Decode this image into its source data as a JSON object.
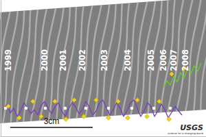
{
  "chart_data": {
    "type": "line",
    "xlim": [
      0,
      7.5
    ],
    "ylim": [
      0,
      10
    ],
    "tick_labels": false,
    "series": [
      {
        "type": "line",
        "color": "#7b3fbf",
        "x": [
          0.125,
          0.25,
          0.375,
          0.5,
          0.625,
          0.75,
          0.875,
          1.0,
          1.125,
          1.25,
          1.375,
          1.5,
          1.625,
          1.75,
          1.875,
          2.0,
          2.125,
          2.25,
          2.375,
          2.5,
          2.625,
          2.75,
          2.875,
          3.0,
          3.125,
          3.25,
          3.375,
          3.5,
          3.625,
          3.75,
          3.875,
          4.0,
          4.125,
          4.25,
          4.375,
          4.5,
          4.625,
          4.75,
          4.875,
          5.0,
          5.125,
          5.25,
          5.375,
          5.5,
          5.625,
          5.75,
          5.875,
          6.0,
          6.125,
          6.25,
          6.375,
          6.5,
          6.625
        ],
        "values": [
          2.0,
          2.4,
          1.75,
          2.1,
          1.5,
          1.9,
          2.5,
          2.1,
          1.7,
          2.0,
          1.6,
          2.3,
          2.6,
          2.1,
          1.7,
          2.2,
          2.5,
          1.9,
          1.5,
          2.1,
          2.5,
          2.2,
          1.7,
          2.0,
          2.6,
          2.2,
          1.6,
          1.9,
          2.5,
          2.7,
          2.1,
          1.6,
          2.0,
          2.5,
          2.1,
          1.5,
          1.9,
          2.5,
          2.7,
          2.1,
          1.5,
          1.9,
          2.5,
          2.2,
          1.5,
          1.9,
          2.4,
          2.0,
          1.4,
          1.8,
          2.25,
          1.9,
          1.6
        ]
      },
      {
        "type": "line",
        "color": "#66cc33",
        "x": [
          5.95,
          6.075,
          6.2,
          6.325,
          6.45,
          6.575,
          6.7,
          6.825,
          6.95,
          7.075,
          7.2,
          7.325
        ],
        "values": [
          3.6,
          4.1,
          3.8,
          4.4,
          4.0,
          4.7,
          4.3,
          5.0,
          4.6,
          5.2,
          4.8,
          5.4
        ]
      },
      {
        "type": "scatter",
        "marker": "diamond",
        "color": "#f2d21b",
        "x": [
          0.3,
          0.7,
          1.2,
          1.5,
          2.0,
          2.4,
          2.7,
          3.05,
          3.5,
          3.95,
          4.3,
          4.65,
          5.0,
          5.35,
          5.8,
          6.15,
          6.25,
          6.7
        ],
        "values": [
          2.25,
          1.4,
          2.6,
          1.5,
          2.6,
          1.3,
          2.7,
          1.5,
          2.7,
          1.4,
          2.6,
          1.4,
          2.7,
          1.5,
          2.6,
          1.3,
          4.6,
          5.0
        ]
      },
      {
        "type": "scatter",
        "marker": "circle",
        "color": "#ffffff",
        "x": [
          0.2,
          0.95,
          1.65,
          2.375,
          3.125,
          3.95,
          4.8,
          5.6,
          6.2
        ],
        "values": [
          2.1,
          2.1,
          2.1,
          2.1,
          2.1,
          2.1,
          2.1,
          2.1,
          2.1
        ]
      }
    ],
    "annotations": {
      "labels": [
        "1999",
        "2000",
        "2001",
        "2002",
        "2003",
        "2004",
        "2005",
        "2006",
        "2007",
        "2008"
      ],
      "x": [
        0.3,
        1.625,
        2.3,
        3.0,
        3.8,
        4.65,
        5.5,
        5.95,
        6.325,
        6.75
      ]
    },
    "scale_bar": {
      "label": "3cm",
      "length": 3
    },
    "logo": {
      "title": "USGS",
      "subtitle": "science for a changing world"
    }
  }
}
